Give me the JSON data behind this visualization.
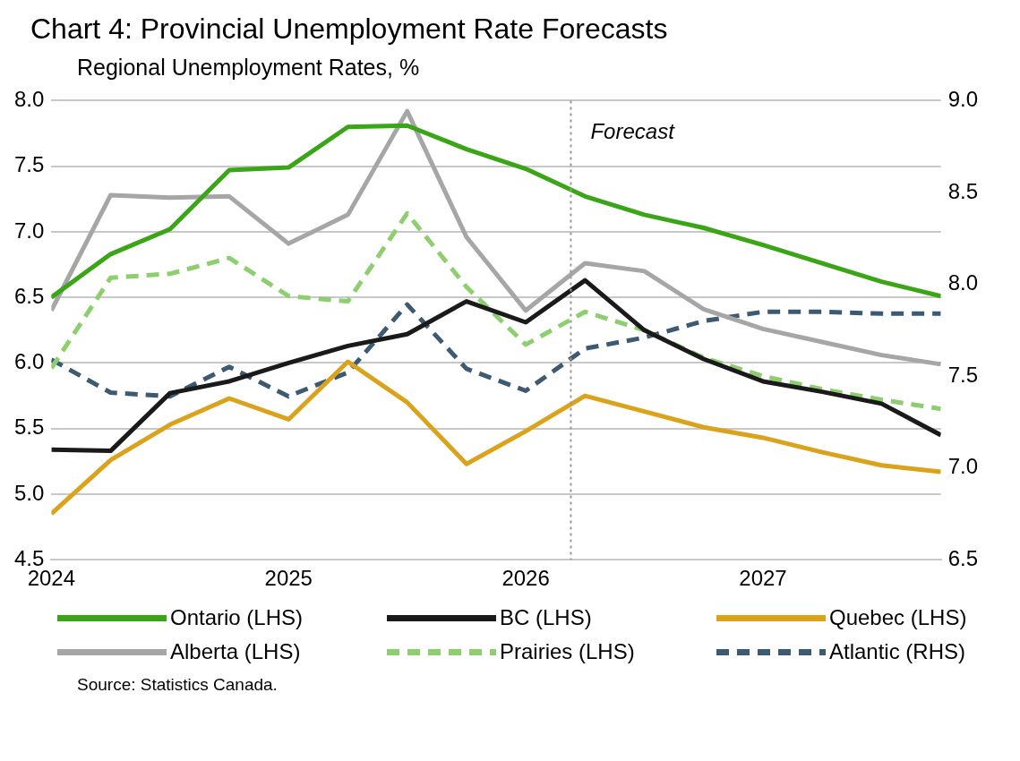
{
  "chart_data": {
    "type": "line",
    "title": "Chart 4: Provincial Unemployment Rate Forecasts",
    "subtitle": "Regional Unemployment Rates, %",
    "x": [
      2024,
      2024.25,
      2024.5,
      2024.75,
      2025,
      2025.25,
      2025.5,
      2025.75,
      2026,
      2026.25,
      2026.5,
      2026.75,
      2027,
      2027.25,
      2027.5,
      2027.75
    ],
    "series": [
      {
        "name": "Ontario (LHS)",
        "color": "#3aa516",
        "values": [
          6.5,
          6.83,
          7.02,
          7.47,
          7.49,
          7.8,
          7.81,
          7.63,
          7.48,
          7.27,
          7.13,
          7.03,
          6.9,
          6.76,
          6.62,
          6.51
        ]
      },
      {
        "name": "BC (LHS)",
        "color": "#1a1a1a",
        "values": [
          5.34,
          5.33,
          5.77,
          5.86,
          6.0,
          6.13,
          6.22,
          6.47,
          6.31,
          6.63,
          6.25,
          6.03,
          5.86,
          5.78,
          5.69,
          5.45
        ]
      },
      {
        "name": "Quebec (LHS)",
        "color": "#dba21c",
        "values": [
          4.85,
          5.26,
          5.53,
          5.73,
          5.57,
          6.01,
          5.7,
          5.23,
          5.48,
          5.75,
          5.63,
          5.51,
          5.43,
          5.32,
          5.22,
          5.17
        ]
      },
      {
        "name": "Alberta (LHS)",
        "color": "#a6a6a6",
        "values": [
          6.4,
          7.28,
          7.26,
          7.27,
          6.91,
          7.13,
          7.92,
          6.96,
          6.4,
          6.76,
          6.7,
          6.41,
          6.26,
          6.16,
          6.06,
          5.99
        ]
      },
      {
        "name": "Prairies (LHS)",
        "color": "#8dce6e",
        "line_style": "dashed",
        "values": [
          5.96,
          6.65,
          6.68,
          6.8,
          6.51,
          6.47,
          7.14,
          6.58,
          6.14,
          6.39,
          6.25,
          6.04,
          5.9,
          5.8,
          5.72,
          5.65
        ]
      },
      {
        "name": "Atlantic (RHS)",
        "color": "#3d5a73",
        "line_style": "dashed",
        "axis": "y2",
        "values": [
          7.59,
          7.41,
          7.39,
          7.55,
          7.39,
          7.52,
          7.89,
          7.54,
          7.42,
          7.65,
          7.71,
          7.8,
          7.85,
          7.85,
          7.84,
          7.84
        ]
      }
    ],
    "xlim": [
      2024,
      2027.75
    ],
    "xticks": [
      2024,
      2025,
      2026,
      2027
    ],
    "ylim": [
      4.5,
      8
    ],
    "yticks": [
      {
        "value": 4.5,
        "label": "4.5"
      },
      {
        "value": 5,
        "label": "5.0"
      },
      {
        "value": 5.5,
        "label": "5.5"
      },
      {
        "value": 6,
        "label": "6.0"
      },
      {
        "value": 6.5,
        "label": "6.5"
      },
      {
        "value": 7,
        "label": "7.0"
      },
      {
        "value": 7.5,
        "label": "7.5"
      },
      {
        "value": 8,
        "label": "8.0"
      }
    ],
    "y2lim": [
      6.5,
      9
    ],
    "y2ticks": [
      {
        "value": 6.5,
        "label": "6.5"
      },
      {
        "value": 7,
        "label": "7.0"
      },
      {
        "value": 7.5,
        "label": "7.5"
      },
      {
        "value": 8,
        "label": "8.0"
      },
      {
        "value": 8.5,
        "label": "8.5"
      },
      {
        "value": 9,
        "label": "9.0"
      }
    ],
    "ref_lines": [
      {
        "axis": "x",
        "value": 2026.19,
        "label": "Forecast",
        "color": "#999999",
        "line_style": "dotted"
      }
    ],
    "grid": "y",
    "legend": "bottom",
    "marker": "none",
    "annotations": [
      "Source: Statistics Canada."
    ]
  }
}
